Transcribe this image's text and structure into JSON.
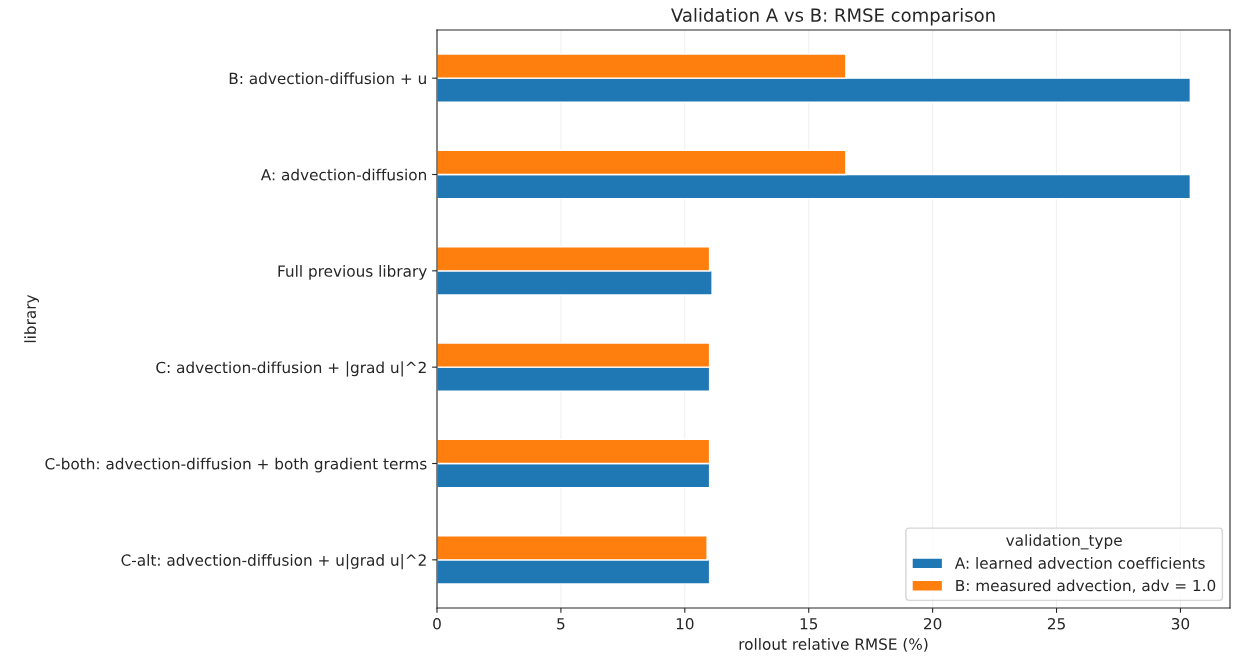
{
  "chart_data": {
    "type": "bar",
    "orientation": "horizontal",
    "title": "Validation A vs B: RMSE comparison",
    "xlabel": "rollout relative RMSE (%)",
    "ylabel": "library",
    "legend_title": "validation_type",
    "categories": [
      "B: advection-diffusion + u",
      "A: advection-diffusion",
      "Full previous library",
      "C: advection-diffusion + |grad u|^2",
      "C-both: advection-diffusion + both gradient terms",
      "C-alt: advection-diffusion + u|grad u|^2"
    ],
    "series": [
      {
        "name": "A: learned advection coefficients",
        "color": "#1f77b4",
        "values": [
          30.4,
          30.4,
          11.1,
          11.0,
          11.0,
          11.0
        ]
      },
      {
        "name": "B: measured advection, adv = 1.0",
        "color": "#ff7f0e",
        "values": [
          16.5,
          16.5,
          11.0,
          11.0,
          11.0,
          10.9
        ]
      }
    ],
    "xlim": [
      0,
      32
    ],
    "xticks": [
      0,
      5,
      10,
      15,
      20,
      25,
      30
    ],
    "grid": "x",
    "legend": "bottom right"
  }
}
